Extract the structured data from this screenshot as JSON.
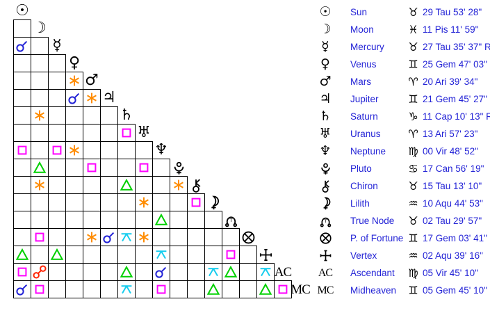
{
  "colors": {
    "background": "#ffffff",
    "grid_line": "#000000",
    "glyph": "#000000",
    "table_text": "#2323d6",
    "aspects": {
      "conjunction": "#2323d6",
      "sextile": "#ff8c00",
      "square": "#ff00ff",
      "trine": "#00d000",
      "opposition": "#ff2200",
      "quincunx": "#17cdee"
    }
  },
  "points": [
    {
      "id": "sun",
      "name": "Sun",
      "glyph": "☉",
      "glyph_type": "char",
      "sign": "Tau",
      "sign_glyph": "♉",
      "position": "29 Tau 53' 28\""
    },
    {
      "id": "moon",
      "name": "Moon",
      "glyph": "☽",
      "glyph_type": "char",
      "sign": "Pis",
      "sign_glyph": "♓",
      "position": "11 Pis 11' 59\""
    },
    {
      "id": "mercury",
      "name": "Mercury",
      "glyph": "☿",
      "glyph_type": "char",
      "sign": "Tau",
      "sign_glyph": "♉",
      "position": "27 Tau 35' 37\" R"
    },
    {
      "id": "venus",
      "name": "Venus",
      "glyph": "♀",
      "glyph_type": "char",
      "sign": "Gem",
      "sign_glyph": "♊",
      "position": "25 Gem 47' 03\""
    },
    {
      "id": "mars",
      "name": "Mars",
      "glyph": "♂",
      "glyph_type": "char",
      "sign": "Ari",
      "sign_glyph": "♈",
      "position": "20 Ari 39' 34\""
    },
    {
      "id": "jupiter",
      "name": "Jupiter",
      "glyph": "♃",
      "glyph_type": "char",
      "sign": "Gem",
      "sign_glyph": "♊",
      "position": "21 Gem 45' 27\""
    },
    {
      "id": "saturn",
      "name": "Saturn",
      "glyph": "♄",
      "glyph_type": "char",
      "sign": "Cap",
      "sign_glyph": "♑",
      "position": "11 Cap 10' 13\" R"
    },
    {
      "id": "uranus",
      "name": "Uranus",
      "glyph": "♅",
      "glyph_type": "char",
      "sign": "Ari",
      "sign_glyph": "♈",
      "position": "13 Ari 57' 23\""
    },
    {
      "id": "neptune",
      "name": "Neptune",
      "glyph": "♆",
      "glyph_type": "char",
      "sign": "Vir",
      "sign_glyph": "♍",
      "position": "00 Vir 48' 52\""
    },
    {
      "id": "pluto",
      "name": "Pluto",
      "glyph": "svg",
      "glyph_type": "svg",
      "sign": "Can",
      "sign_glyph": "♋",
      "position": "17 Can 56' 19\""
    },
    {
      "id": "chiron",
      "name": "Chiron",
      "glyph": "svg",
      "glyph_type": "svg",
      "sign": "Tau",
      "sign_glyph": "♉",
      "position": "15 Tau 13' 10\""
    },
    {
      "id": "lilith",
      "name": "Lilith",
      "glyph": "svg",
      "glyph_type": "svg",
      "sign": "Aqu",
      "sign_glyph": "♒",
      "position": "10 Aqu 44' 53\""
    },
    {
      "id": "true-node",
      "name": "True Node",
      "glyph": "svg",
      "glyph_type": "svg",
      "sign": "Tau",
      "sign_glyph": "♉",
      "position": "02 Tau 29' 57\""
    },
    {
      "id": "fortune",
      "name": "P. of Fortune",
      "glyph": "svg",
      "glyph_type": "svg",
      "sign": "Gem",
      "sign_glyph": "♊",
      "position": "17 Gem 03' 41\""
    },
    {
      "id": "vertex",
      "name": "Vertex",
      "glyph": "svg",
      "glyph_type": "svg",
      "sign": "Aqu",
      "sign_glyph": "♒",
      "position": "02 Aqu 39' 16\""
    },
    {
      "id": "ascendant",
      "name": "Ascendant",
      "glyph": "AC",
      "glyph_type": "text",
      "sign": "Vir",
      "sign_glyph": "♍",
      "position": "05 Vir 45' 10\""
    },
    {
      "id": "midheaven",
      "name": "Midheaven",
      "glyph": "MC",
      "glyph_type": "text",
      "sign": "Gem",
      "sign_glyph": "♊",
      "position": "05 Gem 45' 10\""
    }
  ],
  "aspects": [
    {
      "row": 3,
      "col": 1,
      "type": "conjunction"
    },
    {
      "row": 5,
      "col": 4,
      "type": "sextile"
    },
    {
      "row": 6,
      "col": 4,
      "type": "conjunction"
    },
    {
      "row": 6,
      "col": 5,
      "type": "sextile"
    },
    {
      "row": 7,
      "col": 2,
      "type": "sextile"
    },
    {
      "row": 8,
      "col": 7,
      "type": "square"
    },
    {
      "row": 9,
      "col": 1,
      "type": "square"
    },
    {
      "row": 9,
      "col": 3,
      "type": "square"
    },
    {
      "row": 9,
      "col": 4,
      "type": "sextile"
    },
    {
      "row": 10,
      "col": 2,
      "type": "trine"
    },
    {
      "row": 10,
      "col": 5,
      "type": "square"
    },
    {
      "row": 10,
      "col": 8,
      "type": "square"
    },
    {
      "row": 11,
      "col": 2,
      "type": "sextile"
    },
    {
      "row": 11,
      "col": 7,
      "type": "trine"
    },
    {
      "row": 11,
      "col": 10,
      "type": "sextile"
    },
    {
      "row": 12,
      "col": 8,
      "type": "sextile"
    },
    {
      "row": 12,
      "col": 11,
      "type": "square"
    },
    {
      "row": 13,
      "col": 9,
      "type": "trine"
    },
    {
      "row": 14,
      "col": 2,
      "type": "square"
    },
    {
      "row": 14,
      "col": 5,
      "type": "sextile"
    },
    {
      "row": 14,
      "col": 6,
      "type": "conjunction"
    },
    {
      "row": 14,
      "col": 7,
      "type": "quincunx"
    },
    {
      "row": 14,
      "col": 8,
      "type": "sextile"
    },
    {
      "row": 15,
      "col": 1,
      "type": "trine"
    },
    {
      "row": 15,
      "col": 3,
      "type": "trine"
    },
    {
      "row": 15,
      "col": 9,
      "type": "quincunx"
    },
    {
      "row": 15,
      "col": 13,
      "type": "square"
    },
    {
      "row": 16,
      "col": 1,
      "type": "square"
    },
    {
      "row": 16,
      "col": 2,
      "type": "opposition"
    },
    {
      "row": 16,
      "col": 7,
      "type": "trine"
    },
    {
      "row": 16,
      "col": 9,
      "type": "conjunction"
    },
    {
      "row": 16,
      "col": 12,
      "type": "quincunx"
    },
    {
      "row": 16,
      "col": 13,
      "type": "trine"
    },
    {
      "row": 16,
      "col": 15,
      "type": "quincunx"
    },
    {
      "row": 17,
      "col": 1,
      "type": "conjunction"
    },
    {
      "row": 17,
      "col": 2,
      "type": "square"
    },
    {
      "row": 17,
      "col": 7,
      "type": "quincunx"
    },
    {
      "row": 17,
      "col": 9,
      "type": "square"
    },
    {
      "row": 17,
      "col": 12,
      "type": "trine"
    },
    {
      "row": 17,
      "col": 15,
      "type": "trine"
    },
    {
      "row": 17,
      "col": 16,
      "type": "square"
    }
  ]
}
